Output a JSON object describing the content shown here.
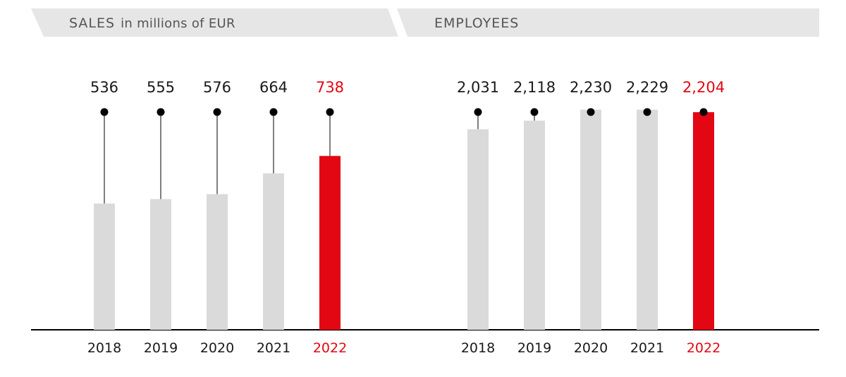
{
  "colors": {
    "bar_default": "#dadada",
    "bar_highlight": "#e30613",
    "text": "#1a1a1a",
    "header_bg": "#e6e6e6",
    "header_text": "#555555",
    "axis": "#000000"
  },
  "chart_data": [
    {
      "type": "bar",
      "title": "SALES",
      "subtitle": "in millions of EUR",
      "categories": [
        "2018",
        "2019",
        "2020",
        "2021",
        "2022"
      ],
      "values": [
        536,
        555,
        576,
        664,
        738
      ],
      "value_labels": [
        "536",
        "555",
        "576",
        "664",
        "738"
      ],
      "highlight_index": 4,
      "ylim": [
        0,
        1400
      ],
      "grid": false,
      "legend": "none"
    },
    {
      "type": "bar",
      "title": "EMPLOYEES",
      "categories": [
        "2018",
        "2019",
        "2020",
        "2021",
        "2022"
      ],
      "values": [
        2031,
        2118,
        2230,
        2229,
        2204
      ],
      "value_labels": [
        "2,031",
        "2,118",
        "2,230",
        "2,229",
        "2,204"
      ],
      "highlight_index": 4,
      "ylim": [
        0,
        3340
      ],
      "grid": false,
      "legend": "none"
    }
  ]
}
